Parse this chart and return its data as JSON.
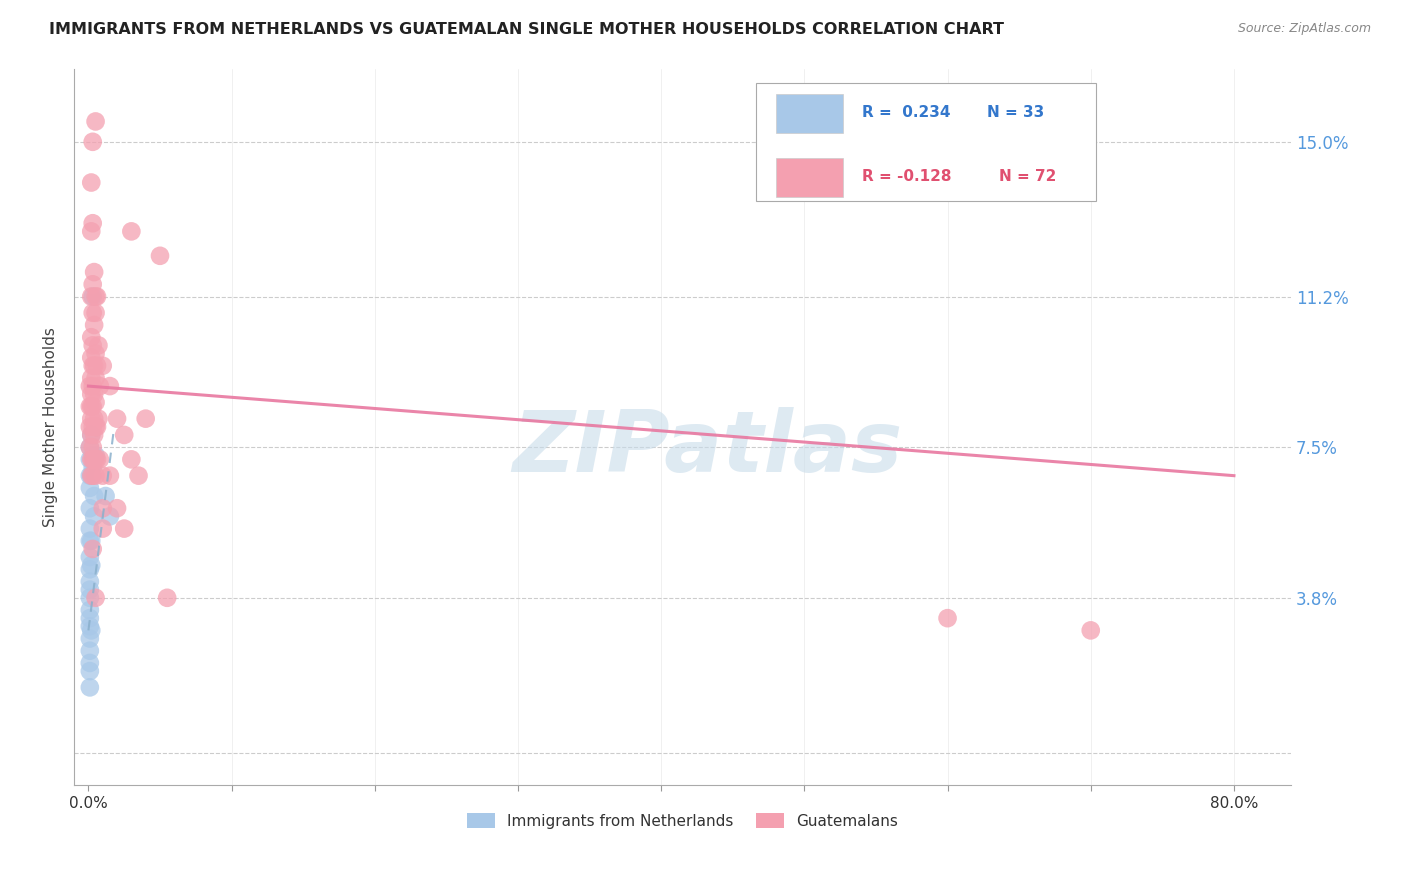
{
  "title": "IMMIGRANTS FROM NETHERLANDS VS GUATEMALAN SINGLE MOTHER HOUSEHOLDS CORRELATION CHART",
  "source": "Source: ZipAtlas.com",
  "ylabel": "Single Mother Households",
  "ytick_labels": [
    "",
    "3.8%",
    "7.5%",
    "11.2%",
    "15.0%"
  ],
  "ytick_positions": [
    0.0,
    0.038,
    0.075,
    0.112,
    0.15
  ],
  "xtick_positions": [
    0.0,
    0.1,
    0.2,
    0.3,
    0.4,
    0.5,
    0.6,
    0.7,
    0.8
  ],
  "xlim": [
    -0.01,
    0.84
  ],
  "ylim": [
    -0.008,
    0.168
  ],
  "blue_color": "#a8c8e8",
  "pink_color": "#f4a0b0",
  "blue_line_color": "#4477aa",
  "pink_line_color": "#e06080",
  "blue_points": [
    [
      0.001,
      0.075
    ],
    [
      0.001,
      0.072
    ],
    [
      0.001,
      0.068
    ],
    [
      0.001,
      0.065
    ],
    [
      0.001,
      0.06
    ],
    [
      0.001,
      0.055
    ],
    [
      0.001,
      0.052
    ],
    [
      0.001,
      0.048
    ],
    [
      0.001,
      0.045
    ],
    [
      0.001,
      0.042
    ],
    [
      0.001,
      0.04
    ],
    [
      0.001,
      0.038
    ],
    [
      0.001,
      0.035
    ],
    [
      0.001,
      0.033
    ],
    [
      0.001,
      0.031
    ],
    [
      0.001,
      0.028
    ],
    [
      0.001,
      0.025
    ],
    [
      0.001,
      0.022
    ],
    [
      0.001,
      0.02
    ],
    [
      0.001,
      0.016
    ],
    [
      0.002,
      0.078
    ],
    [
      0.002,
      0.068
    ],
    [
      0.002,
      0.052
    ],
    [
      0.002,
      0.046
    ],
    [
      0.002,
      0.03
    ],
    [
      0.003,
      0.112
    ],
    [
      0.003,
      0.073
    ],
    [
      0.003,
      0.07
    ],
    [
      0.004,
      0.063
    ],
    [
      0.004,
      0.058
    ],
    [
      0.005,
      0.073
    ],
    [
      0.012,
      0.063
    ],
    [
      0.015,
      0.058
    ]
  ],
  "pink_points": [
    [
      0.001,
      0.09
    ],
    [
      0.001,
      0.085
    ],
    [
      0.001,
      0.08
    ],
    [
      0.001,
      0.075
    ],
    [
      0.002,
      0.14
    ],
    [
      0.002,
      0.128
    ],
    [
      0.002,
      0.112
    ],
    [
      0.002,
      0.102
    ],
    [
      0.002,
      0.097
    ],
    [
      0.002,
      0.092
    ],
    [
      0.002,
      0.088
    ],
    [
      0.002,
      0.085
    ],
    [
      0.002,
      0.082
    ],
    [
      0.002,
      0.078
    ],
    [
      0.002,
      0.072
    ],
    [
      0.002,
      0.068
    ],
    [
      0.003,
      0.15
    ],
    [
      0.003,
      0.13
    ],
    [
      0.003,
      0.115
    ],
    [
      0.003,
      0.108
    ],
    [
      0.003,
      0.1
    ],
    [
      0.003,
      0.095
    ],
    [
      0.003,
      0.09
    ],
    [
      0.003,
      0.085
    ],
    [
      0.003,
      0.08
    ],
    [
      0.003,
      0.075
    ],
    [
      0.003,
      0.072
    ],
    [
      0.003,
      0.068
    ],
    [
      0.003,
      0.05
    ],
    [
      0.004,
      0.118
    ],
    [
      0.004,
      0.105
    ],
    [
      0.004,
      0.095
    ],
    [
      0.004,
      0.088
    ],
    [
      0.004,
      0.082
    ],
    [
      0.004,
      0.078
    ],
    [
      0.004,
      0.072
    ],
    [
      0.005,
      0.155
    ],
    [
      0.005,
      0.112
    ],
    [
      0.005,
      0.108
    ],
    [
      0.005,
      0.098
    ],
    [
      0.005,
      0.092
    ],
    [
      0.005,
      0.086
    ],
    [
      0.005,
      0.08
    ],
    [
      0.005,
      0.072
    ],
    [
      0.005,
      0.068
    ],
    [
      0.005,
      0.038
    ],
    [
      0.006,
      0.112
    ],
    [
      0.006,
      0.095
    ],
    [
      0.006,
      0.08
    ],
    [
      0.006,
      0.072
    ],
    [
      0.007,
      0.1
    ],
    [
      0.007,
      0.082
    ],
    [
      0.008,
      0.09
    ],
    [
      0.008,
      0.072
    ],
    [
      0.01,
      0.095
    ],
    [
      0.01,
      0.068
    ],
    [
      0.01,
      0.06
    ],
    [
      0.01,
      0.055
    ],
    [
      0.015,
      0.09
    ],
    [
      0.015,
      0.068
    ],
    [
      0.02,
      0.082
    ],
    [
      0.02,
      0.06
    ],
    [
      0.025,
      0.078
    ],
    [
      0.025,
      0.055
    ],
    [
      0.03,
      0.128
    ],
    [
      0.03,
      0.072
    ],
    [
      0.035,
      0.068
    ],
    [
      0.04,
      0.082
    ],
    [
      0.05,
      0.122
    ],
    [
      0.055,
      0.038
    ],
    [
      0.6,
      0.033
    ],
    [
      0.7,
      0.03
    ]
  ],
  "blue_trend_x": [
    0.0,
    0.018
  ],
  "blue_trend_y": [
    0.03,
    0.08
  ],
  "pink_trend_x": [
    0.0,
    0.8
  ],
  "pink_trend_y": [
    0.09,
    0.068
  ],
  "watermark_text": "ZIPatlas",
  "legend_blue_text": "R =  0.234   N = 33",
  "legend_pink_text": "R = -0.128   N = 72",
  "legend_blue_label": "Immigrants from Netherlands",
  "legend_pink_label": "Guatemalans",
  "background_color": "#ffffff",
  "grid_color": "#cccccc"
}
